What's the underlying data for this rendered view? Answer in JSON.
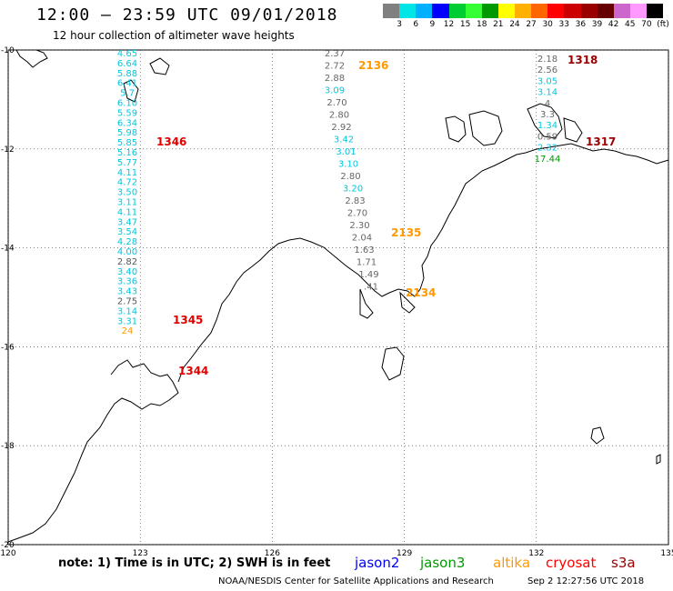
{
  "header": {
    "title": "12:00 – 23:59 UTC 09/01/2018",
    "subtitle": "12 hour collection of altimeter wave heights"
  },
  "colorbar": {
    "colors": [
      "#808080",
      "#00e5e5",
      "#00b0ff",
      "#0000ff",
      "#00cc33",
      "#33ff33",
      "#009900",
      "#ffff00",
      "#ffb000",
      "#ff6600",
      "#ff0000",
      "#cc0000",
      "#990000",
      "#660000",
      "#cc66cc",
      "#ff99ff",
      "#000000"
    ],
    "labels": [
      "3",
      "6",
      "9",
      "12",
      "15",
      "18",
      "21",
      "24",
      "27",
      "30",
      "33",
      "36",
      "39",
      "42",
      "45",
      "70",
      "(ft)"
    ]
  },
  "axes": {
    "lon_ticks": [
      "120",
      "123",
      "126",
      "129",
      "132",
      "135"
    ],
    "lat_ticks": [
      "-10",
      "-12",
      "-14",
      "-16",
      "-18",
      "-20"
    ]
  },
  "tracks": [
    {
      "name": "track-west",
      "color": "#00c8e0",
      "values": [
        "4.65",
        "6.64",
        "5.88",
        "6.41",
        "5.7",
        "6.10",
        "5.59",
        "6.34",
        "5.98",
        "5.85",
        "5.16",
        "5.77",
        "4.11",
        "4.72",
        "3.50",
        "3.11",
        "4.11",
        "3.47",
        "3.54",
        "4.28",
        "4.00",
        "2.82",
        "3.40",
        "3.36",
        "3.43",
        "2.75",
        "3.14",
        "3.31",
        "24"
      ],
      "time_label": "",
      "times": [
        {
          "text": "1346",
          "color": "#e00000"
        },
        {
          "text": "1345",
          "color": "#e00000"
        },
        {
          "text": "1344",
          "color": "#e00000"
        }
      ]
    },
    {
      "name": "track-middle",
      "values": [
        "2.37",
        "2.72",
        "2.88",
        "3.09",
        "2.70",
        "2.80",
        "2.92",
        "3.42",
        "3.01",
        "3.10",
        "2.80",
        "3.20",
        "2.83",
        "2.70",
        "2.30",
        "2.04",
        "1.63",
        "1.71",
        "1.49",
        ".41"
      ],
      "times": [
        {
          "text": "2136",
          "color": "#ff9900"
        },
        {
          "text": "2135",
          "color": "#ff9900"
        },
        {
          "text": "2134",
          "color": "#ff9900"
        }
      ]
    },
    {
      "name": "track-east",
      "values": [
        "2.18",
        "2.56",
        "3.05",
        "3.14",
        "4",
        "3.3",
        "1.34",
        "0.59",
        "2.32",
        "17.44"
      ],
      "times": [
        {
          "text": "1318",
          "color": "#990000"
        },
        {
          "text": "1317",
          "color": "#990000"
        }
      ]
    }
  ],
  "legend": {
    "note": "note:  1) Time is in UTC;  2) SWH is in feet",
    "satellites": [
      {
        "name": "jason2",
        "color": "#0000ff"
      },
      {
        "name": "jason3",
        "color": "#009900"
      },
      {
        "name": "altika",
        "color": "#ff9900"
      },
      {
        "name": "cryosat",
        "color": "#ff0000"
      },
      {
        "name": "s3a",
        "color": "#990000"
      }
    ]
  },
  "footer": {
    "credit": "NOAA/NESDIS Center for Satellite Applications and Research",
    "timestamp": "Sep  2 12:27:56 UTC 2018"
  }
}
